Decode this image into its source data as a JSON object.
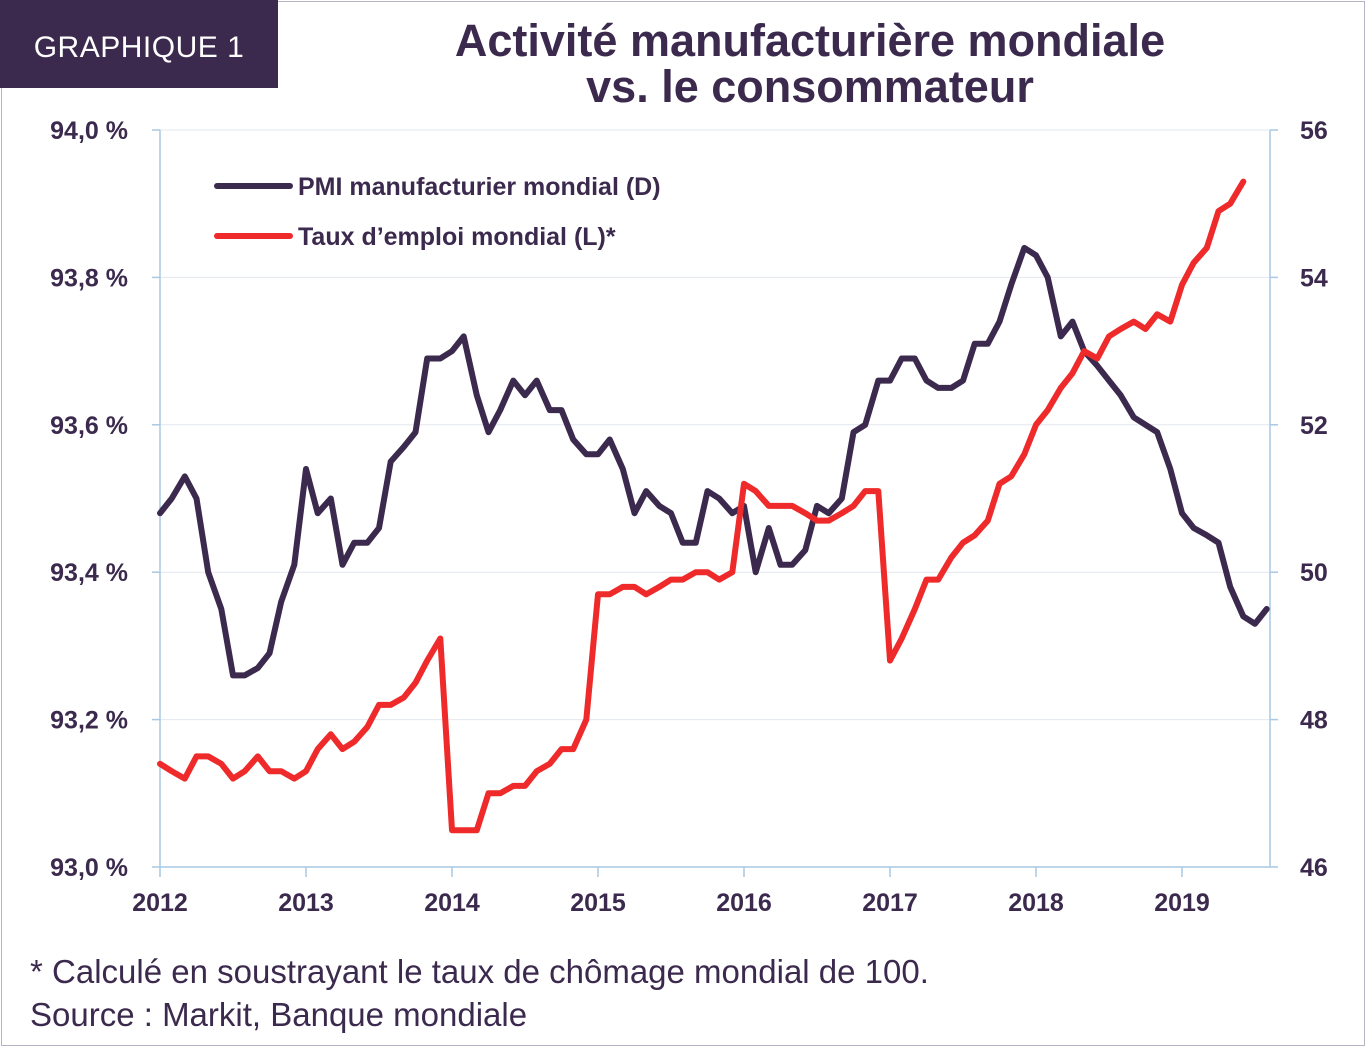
{
  "badge": "GRAPHIQUE 1",
  "title_line1": "Activité manufacturière mondiale",
  "title_line2": "vs. le consommateur",
  "footnote": "* Calculé en soustrayant le taux de chômage mondial de 100.",
  "source": "Source : Markit, Banque mondiale",
  "colors": {
    "navy": "#3b2a4d",
    "red": "#ee2a2a",
    "axis": "#a9c8e3",
    "grid": "#e3e8ef"
  },
  "chart_data": {
    "type": "line",
    "x_tick_labels": [
      "2012",
      "2013",
      "2014",
      "2015",
      "2016",
      "2017",
      "2018",
      "2019"
    ],
    "y_left": {
      "min": 93.0,
      "max": 94.0,
      "tick_labels": [
        "93,0 %",
        "93,2 %",
        "93,4 %",
        "93,6 %",
        "93,8 %",
        "94,0 %"
      ]
    },
    "y_right": {
      "min": 46,
      "max": 56,
      "tick_labels": [
        "46",
        "48",
        "50",
        "52",
        "54",
        "56"
      ]
    },
    "grid": true,
    "legend_position": "top-left",
    "series": [
      {
        "name": "PMI manufacturier mondial (D)",
        "axis": "right",
        "color": "#3b2a4d",
        "points": [
          [
            2012.0,
            50.8
          ],
          [
            2012.08,
            51.0
          ],
          [
            2012.17,
            51.3
          ],
          [
            2012.25,
            51.0
          ],
          [
            2012.33,
            50.0
          ],
          [
            2012.42,
            49.5
          ],
          [
            2012.5,
            48.6
          ],
          [
            2012.58,
            48.6
          ],
          [
            2012.67,
            48.7
          ],
          [
            2012.75,
            48.9
          ],
          [
            2012.83,
            49.6
          ],
          [
            2012.92,
            50.1
          ],
          [
            2013.0,
            51.4
          ],
          [
            2013.08,
            50.8
          ],
          [
            2013.17,
            51.0
          ],
          [
            2013.25,
            50.1
          ],
          [
            2013.33,
            50.4
          ],
          [
            2013.42,
            50.4
          ],
          [
            2013.5,
            50.6
          ],
          [
            2013.58,
            51.5
          ],
          [
            2013.67,
            51.7
          ],
          [
            2013.75,
            51.9
          ],
          [
            2013.83,
            52.9
          ],
          [
            2013.92,
            52.9
          ],
          [
            2014.0,
            53.0
          ],
          [
            2014.08,
            53.2
          ],
          [
            2014.17,
            52.4
          ],
          [
            2014.25,
            51.9
          ],
          [
            2014.33,
            52.2
          ],
          [
            2014.42,
            52.6
          ],
          [
            2014.5,
            52.4
          ],
          [
            2014.58,
            52.6
          ],
          [
            2014.67,
            52.2
          ],
          [
            2014.75,
            52.2
          ],
          [
            2014.83,
            51.8
          ],
          [
            2014.92,
            51.6
          ],
          [
            2015.0,
            51.6
          ],
          [
            2015.08,
            51.8
          ],
          [
            2015.17,
            51.4
          ],
          [
            2015.25,
            50.8
          ],
          [
            2015.33,
            51.1
          ],
          [
            2015.42,
            50.9
          ],
          [
            2015.5,
            50.8
          ],
          [
            2015.58,
            50.4
          ],
          [
            2015.67,
            50.4
          ],
          [
            2015.75,
            51.1
          ],
          [
            2015.83,
            51.0
          ],
          [
            2015.92,
            50.8
          ],
          [
            2016.0,
            50.9
          ],
          [
            2016.08,
            50.0
          ],
          [
            2016.17,
            50.6
          ],
          [
            2016.25,
            50.1
          ],
          [
            2016.33,
            50.1
          ],
          [
            2016.42,
            50.3
          ],
          [
            2016.5,
            50.9
          ],
          [
            2016.58,
            50.8
          ],
          [
            2016.67,
            51.0
          ],
          [
            2016.75,
            51.9
          ],
          [
            2016.83,
            52.0
          ],
          [
            2016.92,
            52.6
          ],
          [
            2017.0,
            52.6
          ],
          [
            2017.08,
            52.9
          ],
          [
            2017.17,
            52.9
          ],
          [
            2017.25,
            52.6
          ],
          [
            2017.33,
            52.5
          ],
          [
            2017.42,
            52.5
          ],
          [
            2017.5,
            52.6
          ],
          [
            2017.58,
            53.1
          ],
          [
            2017.67,
            53.1
          ],
          [
            2017.75,
            53.4
          ],
          [
            2017.83,
            53.9
          ],
          [
            2017.92,
            54.4
          ],
          [
            2018.0,
            54.3
          ],
          [
            2018.08,
            54.0
          ],
          [
            2018.17,
            53.2
          ],
          [
            2018.25,
            53.4
          ],
          [
            2018.33,
            53.0
          ],
          [
            2018.42,
            52.8
          ],
          [
            2018.5,
            52.6
          ],
          [
            2018.58,
            52.4
          ],
          [
            2018.67,
            52.1
          ],
          [
            2018.75,
            52.0
          ],
          [
            2018.83,
            51.9
          ],
          [
            2018.92,
            51.4
          ],
          [
            2019.0,
            50.8
          ],
          [
            2019.08,
            50.6
          ],
          [
            2019.17,
            50.5
          ],
          [
            2019.25,
            50.4
          ],
          [
            2019.33,
            49.8
          ],
          [
            2019.42,
            49.4
          ],
          [
            2019.5,
            49.3
          ],
          [
            2019.58,
            49.5
          ]
        ]
      },
      {
        "name": "Taux d’emploi mondial (L)*",
        "axis": "left",
        "color": "#ee2a2a",
        "points": [
          [
            2012.0,
            93.14
          ],
          [
            2012.08,
            93.13
          ],
          [
            2012.17,
            93.12
          ],
          [
            2012.25,
            93.15
          ],
          [
            2012.33,
            93.15
          ],
          [
            2012.42,
            93.14
          ],
          [
            2012.5,
            93.12
          ],
          [
            2012.58,
            93.13
          ],
          [
            2012.67,
            93.15
          ],
          [
            2012.75,
            93.13
          ],
          [
            2012.83,
            93.13
          ],
          [
            2012.92,
            93.12
          ],
          [
            2013.0,
            93.13
          ],
          [
            2013.08,
            93.16
          ],
          [
            2013.17,
            93.18
          ],
          [
            2013.25,
            93.16
          ],
          [
            2013.33,
            93.17
          ],
          [
            2013.42,
            93.19
          ],
          [
            2013.5,
            93.22
          ],
          [
            2013.58,
            93.22
          ],
          [
            2013.67,
            93.23
          ],
          [
            2013.75,
            93.25
          ],
          [
            2013.83,
            93.28
          ],
          [
            2013.92,
            93.31
          ],
          [
            2014.0,
            93.05
          ],
          [
            2014.08,
            93.05
          ],
          [
            2014.17,
            93.05
          ],
          [
            2014.25,
            93.1
          ],
          [
            2014.33,
            93.1
          ],
          [
            2014.42,
            93.11
          ],
          [
            2014.5,
            93.11
          ],
          [
            2014.58,
            93.13
          ],
          [
            2014.67,
            93.14
          ],
          [
            2014.75,
            93.16
          ],
          [
            2014.83,
            93.16
          ],
          [
            2014.92,
            93.2
          ],
          [
            2015.0,
            93.37
          ],
          [
            2015.08,
            93.37
          ],
          [
            2015.17,
            93.38
          ],
          [
            2015.25,
            93.38
          ],
          [
            2015.33,
            93.37
          ],
          [
            2015.42,
            93.38
          ],
          [
            2015.5,
            93.39
          ],
          [
            2015.58,
            93.39
          ],
          [
            2015.67,
            93.4
          ],
          [
            2015.75,
            93.4
          ],
          [
            2015.83,
            93.39
          ],
          [
            2015.92,
            93.4
          ],
          [
            2016.0,
            93.52
          ],
          [
            2016.08,
            93.51
          ],
          [
            2016.17,
            93.49
          ],
          [
            2016.25,
            93.49
          ],
          [
            2016.33,
            93.49
          ],
          [
            2016.42,
            93.48
          ],
          [
            2016.5,
            93.47
          ],
          [
            2016.58,
            93.47
          ],
          [
            2016.67,
            93.48
          ],
          [
            2016.75,
            93.49
          ],
          [
            2016.83,
            93.51
          ],
          [
            2016.92,
            93.51
          ],
          [
            2017.0,
            93.28
          ],
          [
            2017.08,
            93.31
          ],
          [
            2017.17,
            93.35
          ],
          [
            2017.25,
            93.39
          ],
          [
            2017.33,
            93.39
          ],
          [
            2017.42,
            93.42
          ],
          [
            2017.5,
            93.44
          ],
          [
            2017.58,
            93.45
          ],
          [
            2017.67,
            93.47
          ],
          [
            2017.75,
            93.52
          ],
          [
            2017.83,
            93.53
          ],
          [
            2017.92,
            93.56
          ],
          [
            2018.0,
            93.6
          ],
          [
            2018.08,
            93.62
          ],
          [
            2018.17,
            93.65
          ],
          [
            2018.25,
            93.67
          ],
          [
            2018.33,
            93.7
          ],
          [
            2018.42,
            93.69
          ],
          [
            2018.5,
            93.72
          ],
          [
            2018.58,
            93.73
          ],
          [
            2018.67,
            93.74
          ],
          [
            2018.75,
            93.73
          ],
          [
            2018.83,
            93.75
          ],
          [
            2018.92,
            93.74
          ],
          [
            2019.0,
            93.79
          ],
          [
            2019.08,
            93.82
          ],
          [
            2019.17,
            93.84
          ],
          [
            2019.25,
            93.89
          ],
          [
            2019.33,
            93.9
          ],
          [
            2019.42,
            93.93
          ]
        ]
      }
    ]
  }
}
